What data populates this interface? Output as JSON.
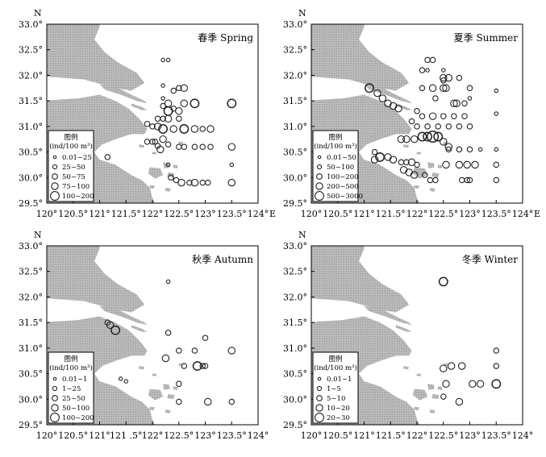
{
  "map": {
    "colors": {
      "land": "#b5b5b5",
      "sea": "#ffffff",
      "frame": "#000000",
      "circle": "#222222"
    },
    "north_label": "N",
    "east_label": "E",
    "x_ticks": [
      "120°",
      "120.5°",
      "121°",
      "121.5°",
      "122°",
      "122.5°",
      "123°",
      "123.5°",
      "124°"
    ],
    "y_ticks": [
      "33.0°",
      "32.5°",
      "32.0°",
      "31.5°",
      "31.0°",
      "30.5°",
      "30.0°",
      "29.5°"
    ],
    "x_ticks_autumn": [
      "120°",
      "120.5°",
      "121°",
      "121 .5°",
      "122°",
      "122.5°",
      "123°",
      "123.5°",
      "124°"
    ],
    "lon_range": [
      120,
      124
    ],
    "lat_range": [
      29.5,
      33.0
    ]
  },
  "panels": [
    {
      "id": "spring",
      "season_label": "春季 Spring",
      "legend": {
        "title": "图例",
        "unit": "(ind/100 m³)",
        "classes": [
          "0.01~25",
          "25~50",
          "50~75",
          "75~100",
          "100~200"
        ]
      },
      "stations": [
        [
          122.2,
          32.3,
          1
        ],
        [
          122.3,
          32.3,
          1
        ],
        [
          122.2,
          31.8,
          1
        ],
        [
          122.2,
          31.55,
          1
        ],
        [
          121.9,
          31.05,
          2
        ],
        [
          122.0,
          31.0,
          2
        ],
        [
          122.05,
          30.7,
          2
        ],
        [
          122.1,
          30.62,
          2
        ],
        [
          122.5,
          31.75,
          2
        ],
        [
          122.6,
          31.75,
          3
        ],
        [
          122.4,
          31.7,
          2
        ],
        [
          122.3,
          31.45,
          3
        ],
        [
          122.6,
          31.45,
          3
        ],
        [
          122.8,
          31.45,
          4
        ],
        [
          122.2,
          31.4,
          2
        ],
        [
          122.4,
          31.35,
          2
        ],
        [
          122.3,
          31.3,
          4
        ],
        [
          122.5,
          31.3,
          3
        ],
        [
          122.2,
          31.15,
          2
        ],
        [
          122.1,
          31.15,
          2
        ],
        [
          122.3,
          31.15,
          3
        ],
        [
          122.5,
          31.15,
          2
        ],
        [
          122.1,
          31.0,
          3
        ],
        [
          122.2,
          30.95,
          4
        ],
        [
          122.4,
          30.95,
          3
        ],
        [
          122.6,
          30.95,
          4
        ],
        [
          122.8,
          30.95,
          3
        ],
        [
          122.95,
          30.95,
          2
        ],
        [
          123.1,
          30.95,
          3
        ],
        [
          121.9,
          30.7,
          2
        ],
        [
          122.0,
          30.7,
          2
        ],
        [
          122.2,
          30.75,
          3
        ],
        [
          122.3,
          30.65,
          2
        ],
        [
          122.15,
          30.55,
          3
        ],
        [
          122.5,
          30.6,
          2
        ],
        [
          122.6,
          30.6,
          2
        ],
        [
          122.8,
          30.6,
          2
        ],
        [
          122.95,
          30.6,
          2
        ],
        [
          123.1,
          30.6,
          2
        ],
        [
          123.5,
          30.6,
          3
        ],
        [
          122.35,
          30.0,
          2
        ],
        [
          122.45,
          29.95,
          2
        ],
        [
          122.55,
          29.9,
          3
        ],
        [
          122.7,
          29.9,
          2
        ],
        [
          122.8,
          29.9,
          3
        ],
        [
          122.95,
          29.9,
          2
        ],
        [
          123.05,
          29.9,
          2
        ],
        [
          123.5,
          29.9,
          3
        ],
        [
          123.5,
          31.45,
          4
        ],
        [
          123.5,
          30.25,
          1
        ],
        [
          122.3,
          30.25,
          1
        ],
        [
          121.15,
          30.4,
          2
        ],
        [
          120.85,
          30.45,
          1
        ]
      ]
    },
    {
      "id": "summer",
      "season_label": "夏季 Summer",
      "legend": {
        "title": "图例",
        "unit": "(ind/100 m³)",
        "classes": [
          "0.01~50",
          "50~100",
          "100~200",
          "200~500",
          "500~3000"
        ]
      },
      "stations": [
        [
          122.2,
          32.3,
          2
        ],
        [
          122.3,
          32.3,
          2
        ],
        [
          122.1,
          32.1,
          2
        ],
        [
          122.2,
          32.1,
          1
        ],
        [
          122.5,
          32.1,
          1
        ],
        [
          122.5,
          31.9,
          2
        ],
        [
          122.5,
          31.95,
          3
        ],
        [
          122.6,
          31.95,
          3
        ],
        [
          122.8,
          31.95,
          2
        ],
        [
          122.1,
          31.75,
          2
        ],
        [
          122.3,
          31.75,
          3
        ],
        [
          122.5,
          31.75,
          3
        ],
        [
          122.55,
          31.75,
          3
        ],
        [
          123.0,
          31.75,
          2
        ],
        [
          123.0,
          31.55,
          1
        ],
        [
          122.35,
          31.55,
          2
        ],
        [
          121.1,
          31.75,
          4
        ],
        [
          121.25,
          31.65,
          3
        ],
        [
          121.35,
          31.55,
          3
        ],
        [
          121.45,
          31.45,
          3
        ],
        [
          121.55,
          31.4,
          3
        ],
        [
          121.65,
          31.35,
          3
        ],
        [
          122.7,
          31.45,
          3
        ],
        [
          122.75,
          31.45,
          3
        ],
        [
          122.9,
          31.45,
          2
        ],
        [
          123.5,
          31.7,
          1
        ],
        [
          123.5,
          31.25,
          1
        ],
        [
          122.0,
          31.3,
          2
        ],
        [
          122.1,
          31.2,
          2
        ],
        [
          122.3,
          31.2,
          3
        ],
        [
          122.5,
          31.2,
          2
        ],
        [
          122.7,
          31.2,
          2
        ],
        [
          122.9,
          31.2,
          2
        ],
        [
          121.9,
          31.1,
          2
        ],
        [
          122.0,
          31.0,
          2
        ],
        [
          122.2,
          31.0,
          2
        ],
        [
          122.4,
          31.0,
          2
        ],
        [
          122.6,
          31.0,
          2
        ],
        [
          122.8,
          31.0,
          2
        ],
        [
          123.0,
          31.0,
          2
        ],
        [
          121.7,
          30.75,
          3
        ],
        [
          121.8,
          30.75,
          3
        ],
        [
          121.95,
          30.75,
          3
        ],
        [
          122.1,
          30.8,
          4
        ],
        [
          122.2,
          30.8,
          4
        ],
        [
          122.3,
          30.8,
          5
        ],
        [
          122.4,
          30.8,
          4
        ],
        [
          122.6,
          30.6,
          3
        ],
        [
          122.5,
          30.7,
          3
        ],
        [
          121.2,
          30.35,
          3
        ],
        [
          121.3,
          30.4,
          4
        ],
        [
          121.45,
          30.4,
          3
        ],
        [
          121.55,
          30.35,
          3
        ],
        [
          121.7,
          30.3,
          2
        ],
        [
          121.8,
          30.3,
          2
        ],
        [
          121.9,
          30.3,
          3
        ],
        [
          122.0,
          30.25,
          2
        ],
        [
          121.2,
          30.5,
          2
        ],
        [
          121.75,
          30.15,
          3
        ],
        [
          121.85,
          30.1,
          3
        ],
        [
          121.95,
          30.05,
          3
        ],
        [
          122.15,
          30.05,
          2
        ],
        [
          122.25,
          29.95,
          2
        ],
        [
          122.35,
          29.95,
          2
        ],
        [
          122.55,
          30.25,
          3
        ],
        [
          122.8,
          30.25,
          3
        ],
        [
          122.95,
          30.25,
          3
        ],
        [
          123.1,
          30.25,
          3
        ],
        [
          123.5,
          30.25,
          2
        ],
        [
          122.6,
          30.55,
          2
        ],
        [
          122.8,
          30.55,
          2
        ],
        [
          123.0,
          30.55,
          2
        ],
        [
          123.2,
          30.55,
          1
        ],
        [
          123.5,
          30.55,
          1
        ],
        [
          122.85,
          29.95,
          2
        ],
        [
          123.0,
          29.95,
          2
        ],
        [
          123.5,
          29.95,
          2
        ],
        [
          122.95,
          29.95,
          2
        ]
      ]
    },
    {
      "id": "autumn",
      "season_label": "秋季 Autumn",
      "legend": {
        "title": "图例",
        "unit": "(ind/100 m³)",
        "classes": [
          "0.01~1",
          "1~25",
          "25~50",
          "50~100",
          "100~200"
        ]
      },
      "stations": [
        [
          121.15,
          31.5,
          2
        ],
        [
          121.2,
          31.45,
          3
        ],
        [
          121.3,
          31.35,
          4
        ],
        [
          122.3,
          32.3,
          1
        ],
        [
          122.3,
          31.3,
          2
        ],
        [
          122.25,
          30.8,
          3
        ],
        [
          122.5,
          30.95,
          2
        ],
        [
          122.6,
          30.65,
          2
        ],
        [
          122.8,
          30.95,
          2
        ],
        [
          122.85,
          30.65,
          4
        ],
        [
          122.95,
          30.65,
          2
        ],
        [
          122.5,
          30.3,
          2
        ],
        [
          122.5,
          29.95,
          2
        ],
        [
          123.0,
          31.2,
          2
        ],
        [
          123.0,
          30.65,
          2
        ],
        [
          123.05,
          29.95,
          3
        ],
        [
          123.5,
          30.95,
          3
        ],
        [
          123.5,
          29.95,
          2
        ],
        [
          121.5,
          30.35,
          1
        ],
        [
          121.4,
          30.4,
          1
        ]
      ]
    },
    {
      "id": "winter",
      "season_label": "冬季 Winter",
      "legend": {
        "title": "图例",
        "unit": "(ind/100 m³)",
        "classes": [
          "0.01~1",
          "1~5",
          "5~10",
          "10~20",
          "20~30"
        ]
      },
      "stations": [
        [
          122.5,
          32.3,
          4
        ],
        [
          122.5,
          30.6,
          3
        ],
        [
          122.65,
          30.65,
          3
        ],
        [
          122.85,
          30.65,
          3
        ],
        [
          122.55,
          30.3,
          3
        ],
        [
          123.05,
          30.3,
          3
        ],
        [
          123.2,
          30.3,
          3
        ],
        [
          123.5,
          30.3,
          4
        ],
        [
          123.5,
          30.65,
          2
        ],
        [
          123.5,
          30.95,
          2
        ],
        [
          122.5,
          30.05,
          2
        ],
        [
          122.8,
          29.95,
          3
        ]
      ]
    }
  ]
}
